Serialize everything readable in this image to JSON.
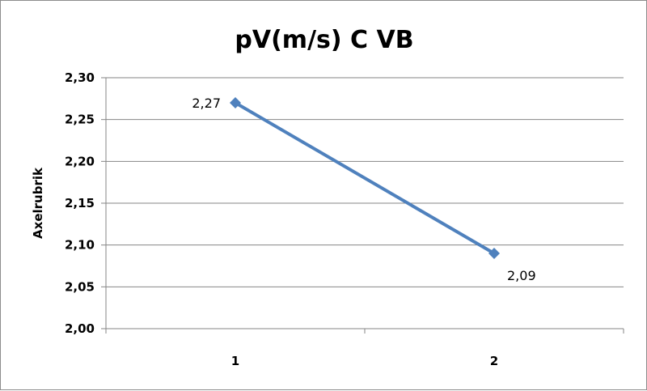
{
  "chart_data": {
    "type": "line",
    "title": "pV(m/s) C VB",
    "xlabel": "",
    "ylabel": "Axelrubrik",
    "categories": [
      "1",
      "2"
    ],
    "series": [
      {
        "values": [
          2.27,
          2.09
        ],
        "data_labels": [
          "2,27",
          "2,09"
        ]
      }
    ],
    "ylim": [
      2.0,
      2.3
    ],
    "yticks": [
      2.0,
      2.05,
      2.1,
      2.15,
      2.2,
      2.25,
      2.3
    ],
    "ytick_labels": [
      "2,00",
      "2,05",
      "2,10",
      "2,15",
      "2,20",
      "2,25",
      "2,30"
    ],
    "grid": true,
    "legend": "none",
    "colors": {
      "series": "#4f81bd",
      "grid": "#868686",
      "border": "#8c8c8c"
    }
  }
}
